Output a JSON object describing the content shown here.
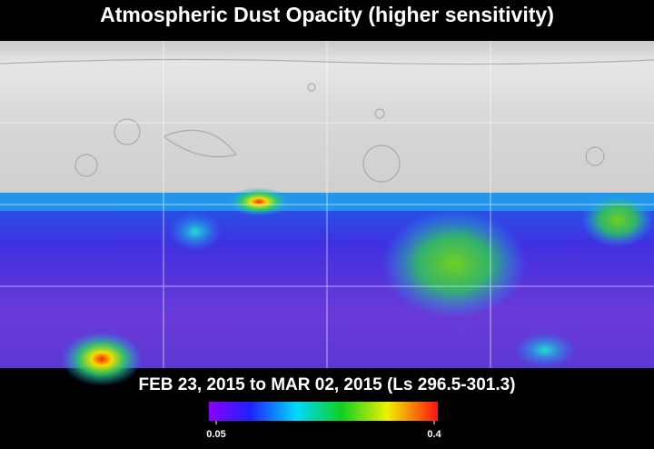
{
  "title": "Atmospheric Dust Opacity (higher sensitivity)",
  "caption": "FEB 23, 2015 to MAR 02, 2015 (Ls 296.5-301.3)",
  "colorbar": {
    "min": 0.05,
    "max": 0.4
  }
}
